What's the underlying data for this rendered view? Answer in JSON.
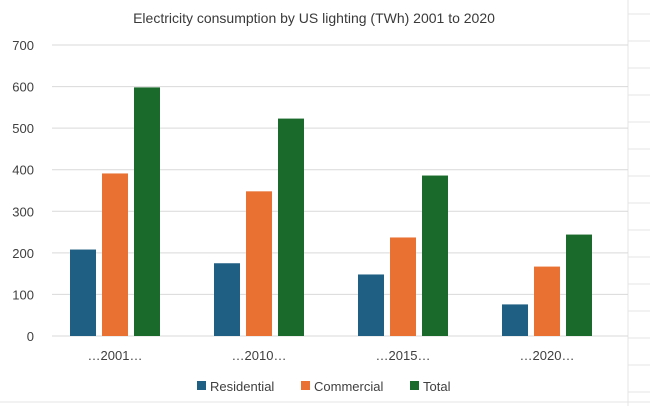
{
  "chart_data": {
    "type": "bar",
    "title": "Electricity consumption by US lighting (TWh) 2001 to 2020",
    "xlabel": "",
    "ylabel": "",
    "categories": [
      "…2001…",
      "…2010…",
      "…2015…",
      "…2020…"
    ],
    "ylim": [
      0,
      700
    ],
    "yticks": [
      0,
      100,
      200,
      300,
      400,
      500,
      600,
      700
    ],
    "ytick_labels": [
      "0",
      "100",
      "200",
      "300",
      "400",
      "500",
      "600",
      "700"
    ],
    "grid": true,
    "legend_position": "bottom",
    "series": [
      {
        "name": "Residential",
        "color": "#1f5f83",
        "values": [
          208,
          175,
          148,
          76
        ]
      },
      {
        "name": "Commercial",
        "color": "#e97132",
        "values": [
          391,
          348,
          237,
          167
        ]
      },
      {
        "name": "Total",
        "color": "#1a6b2b",
        "values": [
          598,
          523,
          386,
          244
        ]
      }
    ]
  }
}
